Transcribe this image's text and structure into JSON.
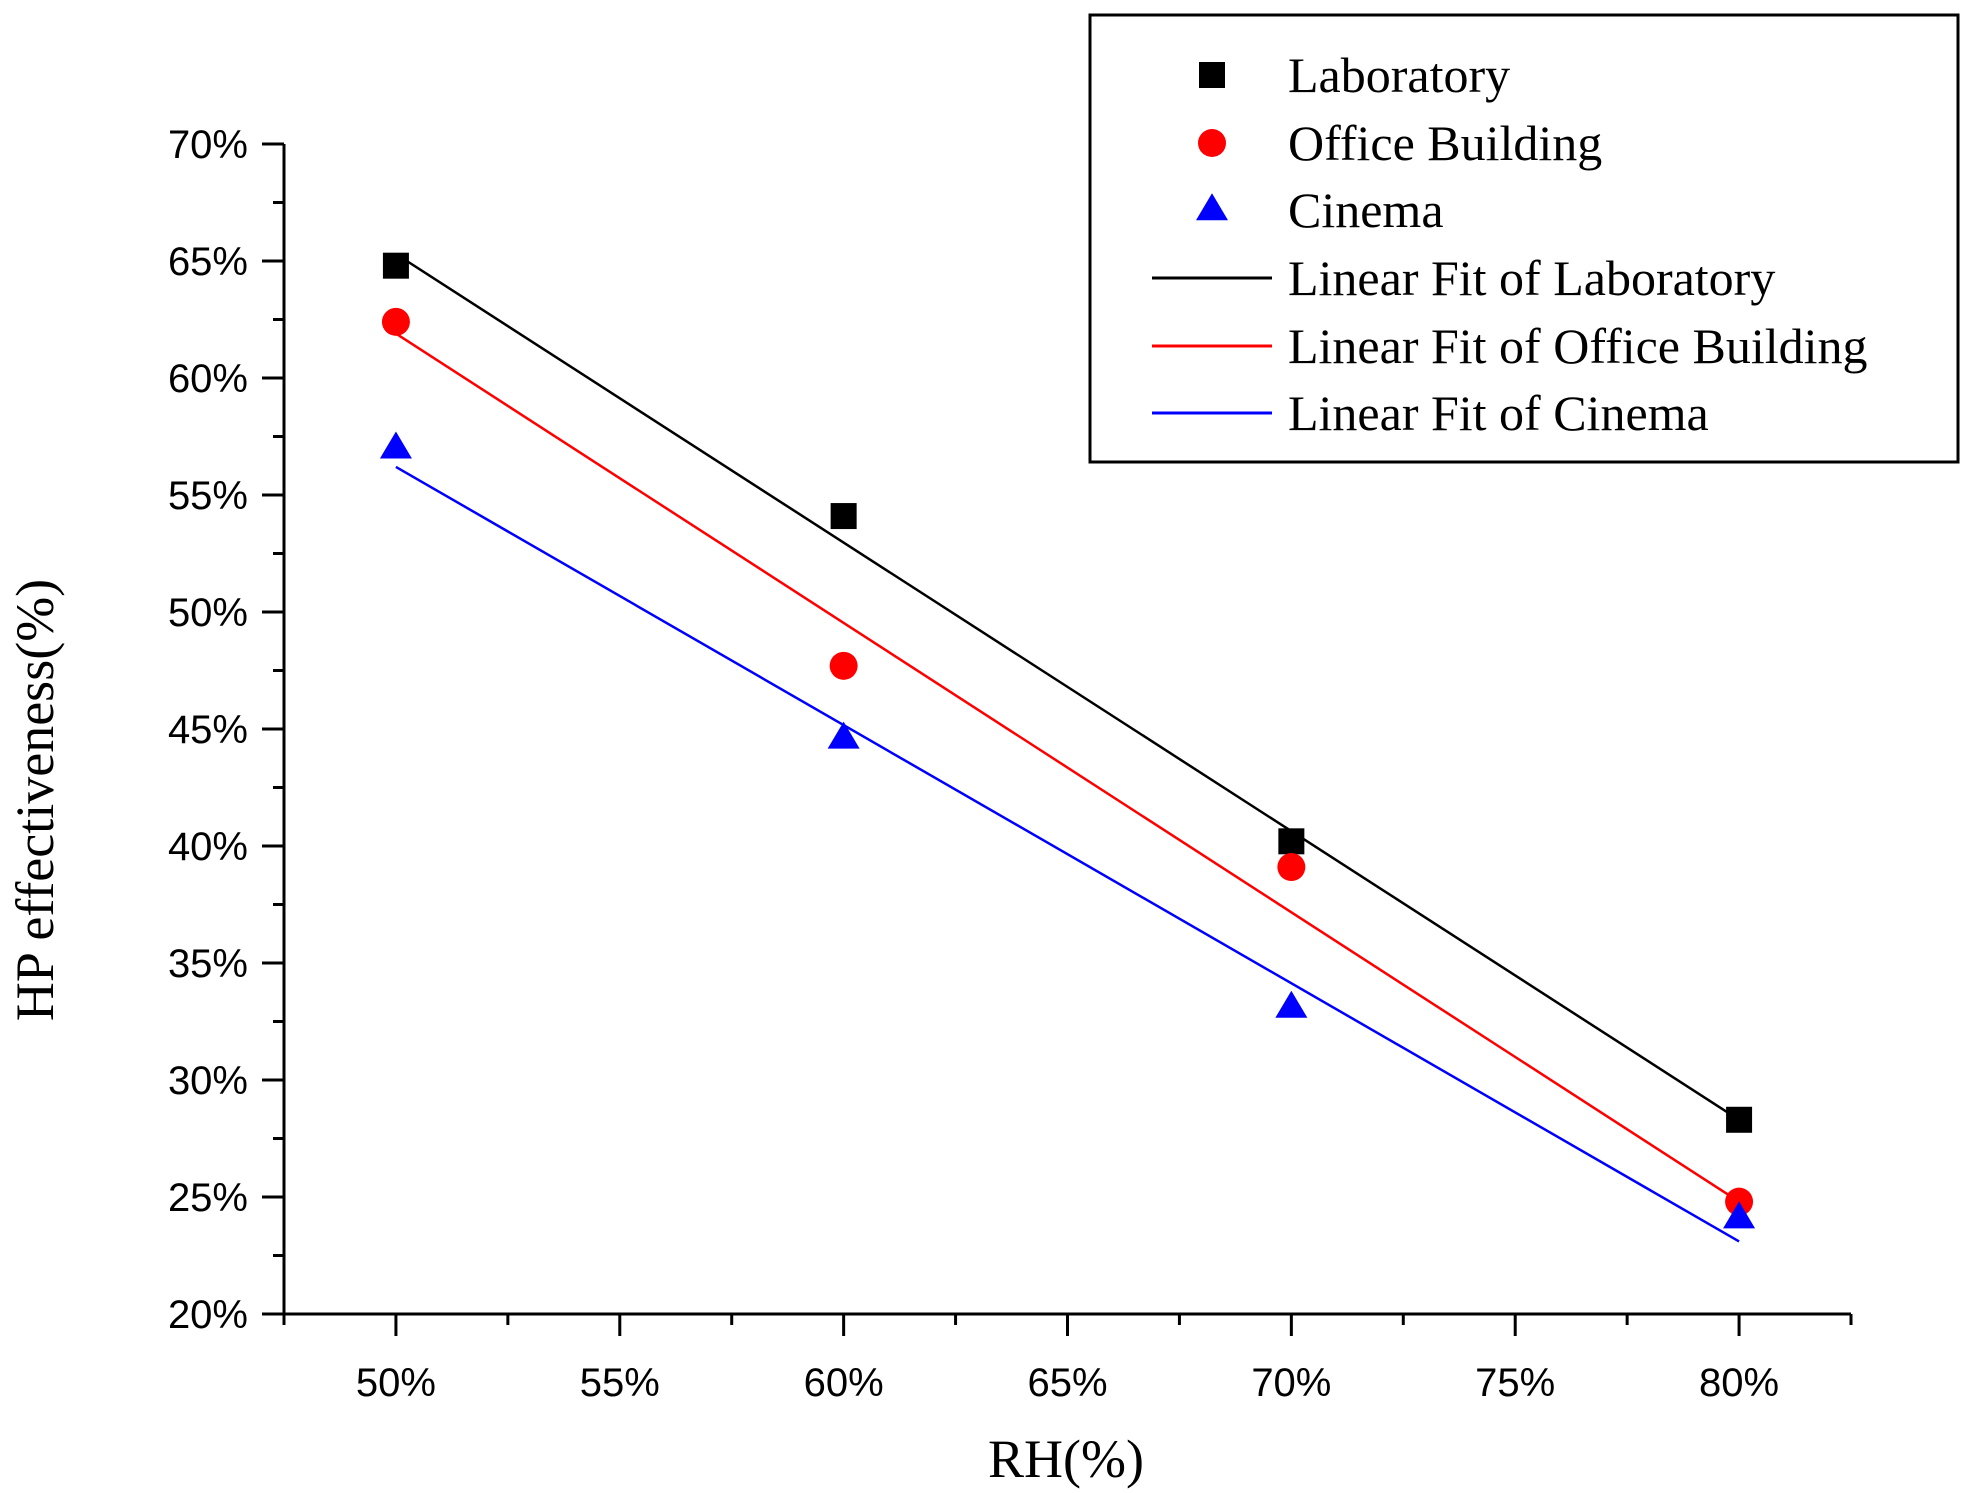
{
  "chart_data": {
    "type": "scatter",
    "xlabel": "RH(%)",
    "ylabel": "HP effectiveness(%)",
    "xlim": [
      47.5,
      82.5
    ],
    "ylim": [
      20,
      70
    ],
    "x": [
      50,
      60,
      70,
      80
    ],
    "xticks": [
      50,
      55,
      60,
      65,
      70,
      75,
      80
    ],
    "xtick_labels": [
      "50%",
      "55%",
      "60%",
      "65%",
      "70%",
      "75%",
      "80%"
    ],
    "yticks": [
      20,
      25,
      30,
      35,
      40,
      45,
      50,
      55,
      60,
      65,
      70
    ],
    "ytick_labels": [
      "20%",
      "25%",
      "30%",
      "35%",
      "40%",
      "45%",
      "50%",
      "55%",
      "60%",
      "65%",
      "70%"
    ],
    "grid": false,
    "legend_position": "top-right",
    "series": [
      {
        "name": "Laboratory",
        "marker": "square",
        "color": "#000000",
        "values": [
          64.8,
          54.1,
          40.2,
          28.3
        ]
      },
      {
        "name": "Office Building",
        "marker": "circle",
        "color": "#ff0000",
        "values": [
          62.4,
          47.7,
          39.1,
          24.8
        ]
      },
      {
        "name": "Cinema",
        "marker": "triangle",
        "color": "#0000ff",
        "values": [
          57.0,
          44.6,
          33.1,
          24.1
        ]
      }
    ],
    "fits": [
      {
        "name": "Linear Fit of Laboratory",
        "color": "#000000",
        "x": [
          50,
          80
        ],
        "y": [
          65.3,
          28.3
        ]
      },
      {
        "name": "Linear Fit of Office Building",
        "color": "#ff0000",
        "x": [
          50,
          80
        ],
        "y": [
          61.9,
          24.8
        ]
      },
      {
        "name": "Linear Fit of Cinema",
        "color": "#0000ff",
        "x": [
          50,
          80
        ],
        "y": [
          56.2,
          23.1
        ]
      }
    ]
  }
}
